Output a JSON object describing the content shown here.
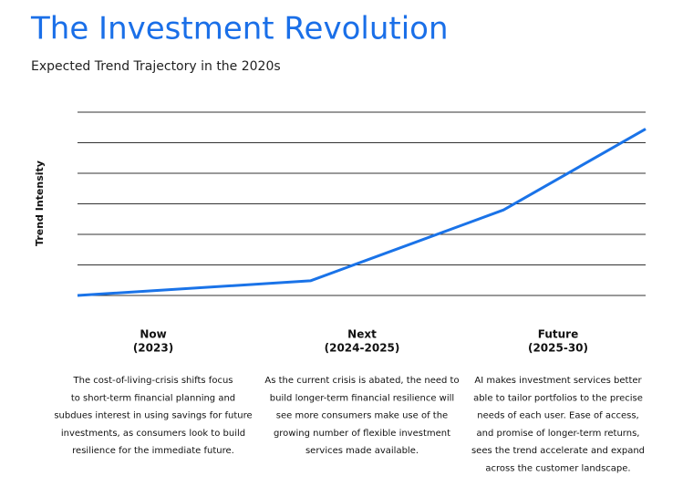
{
  "chart_data": {
    "type": "line",
    "title": "The Investment Revolution",
    "subtitle": "Expected Trend Trajectory in the 2020s",
    "y_label": "Trend Intensity",
    "x": [
      0,
      4.1,
      7.5,
      10
    ],
    "xlim": [
      0,
      10
    ],
    "series": [
      {
        "color": "#1a73e8",
        "values": [
          0,
          0.48,
          2.8,
          5.45
        ]
      }
    ],
    "ylim": [
      0,
      6
    ],
    "yticks": [
      0,
      1,
      2,
      3,
      4,
      5,
      6
    ],
    "grid": true,
    "phases": [
      {
        "title": "Now",
        "period": "(2023)",
        "text": [
          "The cost-of-living-crisis shifts focus",
          "to short-term financial planning and",
          "subdues interest in using savings for future",
          "investments, as consumers look to build",
          "resilience for the immediate future."
        ]
      },
      {
        "title": "Next",
        "period": "(2024-2025)",
        "text": [
          "As the current crisis is abated, the need to",
          "build longer-term financial resilience will",
          "see more consumers make use of the",
          "growing number of flexible investment",
          "services made available."
        ]
      },
      {
        "title": "Future",
        "period": "(2025-30)",
        "text": [
          "AI makes investment services better",
          "able to tailor portfolios to the precise",
          "needs  of each user. Ease of access,",
          "and promise of longer-term returns,",
          "sees the trend accelerate and expand",
          "across the customer landscape."
        ]
      }
    ]
  }
}
